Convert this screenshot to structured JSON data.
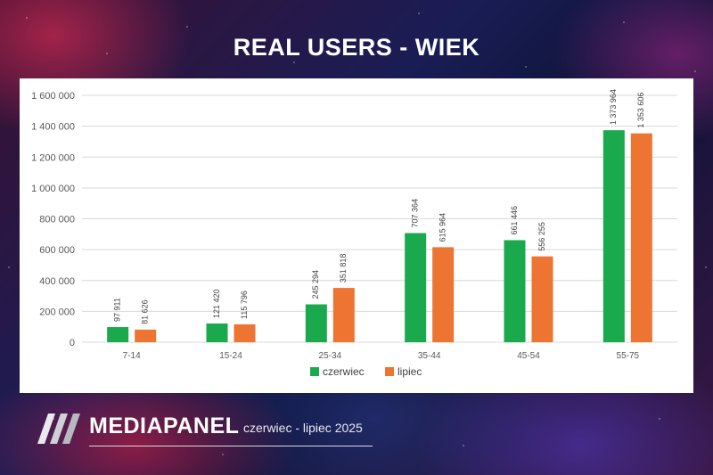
{
  "header": {
    "title": "REAL USERS - WIEK"
  },
  "chart_data": {
    "type": "bar",
    "title": "",
    "xlabel": "",
    "ylabel": "",
    "categories": [
      "7-14",
      "15-24",
      "25-34",
      "35-44",
      "45-54",
      "55-75"
    ],
    "series": [
      {
        "name": "czerwiec",
        "color": "#1aa94c",
        "values": [
          97911,
          121420,
          245294,
          707364,
          661446,
          1373964
        ],
        "labels": [
          "97 911",
          "121 420",
          "245 294",
          "707 364",
          "661 446",
          "1 373 964"
        ]
      },
      {
        "name": "lipiec",
        "color": "#ed7531",
        "values": [
          81626,
          115796,
          351818,
          615964,
          556255,
          1353606
        ],
        "labels": [
          "81 626",
          "115 796",
          "351 818",
          "615 964",
          "556 255",
          "1 353 606"
        ]
      }
    ],
    "ylim": [
      0,
      1600000
    ],
    "yticks": [
      0,
      200000,
      400000,
      600000,
      800000,
      1000000,
      1200000,
      1400000,
      1600000
    ],
    "ytick_labels": [
      "0",
      "200 000",
      "400 000",
      "600 000",
      "800 000",
      "1 000 000",
      "1 200 000",
      "1 400 000",
      "1 600 000"
    ],
    "grid": true,
    "legend": "bottom-center"
  },
  "footer": {
    "brand": "MEDIAPANEL",
    "period": "czerwiec - lipiec 2025"
  }
}
